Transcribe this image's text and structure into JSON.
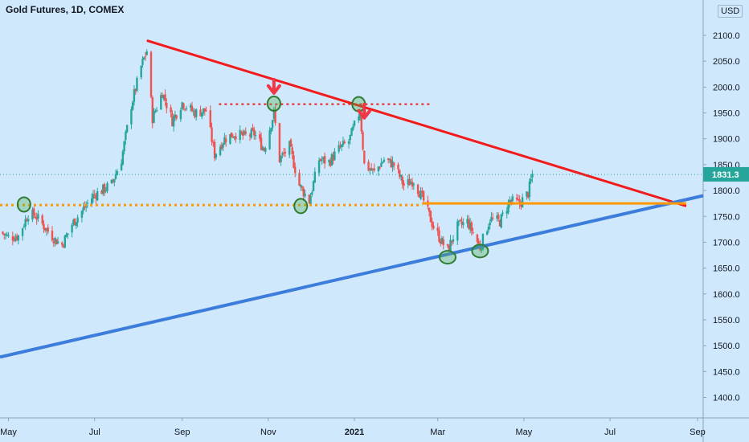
{
  "title": "Gold Futures, 1D, COMEX",
  "currency": "USD",
  "colors": {
    "background": "#cfe8fc",
    "up_candle": "#26a69a",
    "down_candle": "#ef5350",
    "resistance_line": "#f21a1a",
    "support_line": "#3c7ddc",
    "horizontal_level": "#ff9800",
    "marker_circle": "#4caf50",
    "arrow": "#f23645",
    "last_price_tag": "#26a69a"
  },
  "chart_data": {
    "type": "candlestick",
    "y_axis": {
      "ticks": [
        "1400.0",
        "1450.0",
        "1500.0",
        "1550.0",
        "1600.0",
        "1650.0",
        "1700.0",
        "1750.0",
        "1800.0",
        "1850.0",
        "1900.0",
        "1950.0",
        "2000.0",
        "2050.0",
        "2100.0"
      ],
      "ylim": [
        1370,
        2150
      ]
    },
    "x_axis": {
      "ticks": [
        "May",
        "Jul",
        "Sep",
        "Nov",
        "2021",
        "Mar",
        "May",
        "Jul",
        "Sep"
      ],
      "range": [
        "2020-04-25",
        "2021-09-05"
      ]
    },
    "last_price": "1831.3",
    "series": [
      {
        "type": "ohlc-approx",
        "points": [
          [
            "2020-04-25",
            1720
          ],
          [
            "2020-05-01",
            1710
          ],
          [
            "2020-05-08",
            1712
          ],
          [
            "2020-05-15",
            1755
          ],
          [
            "2020-05-20",
            1752
          ],
          [
            "2020-05-27",
            1728
          ],
          [
            "2020-06-03",
            1705
          ],
          [
            "2020-06-08",
            1695
          ],
          [
            "2020-06-15",
            1735
          ],
          [
            "2020-06-22",
            1760
          ],
          [
            "2020-06-30",
            1790
          ],
          [
            "2020-07-06",
            1800
          ],
          [
            "2020-07-13",
            1812
          ],
          [
            "2020-07-20",
            1860
          ],
          [
            "2020-07-27",
            1965
          ],
          [
            "2020-08-03",
            2040
          ],
          [
            "2020-08-07",
            2070
          ],
          [
            "2020-08-11",
            1940
          ],
          [
            "2020-08-18",
            1990
          ],
          [
            "2020-08-25",
            1935
          ],
          [
            "2020-09-01",
            1970
          ],
          [
            "2020-09-10",
            1950
          ],
          [
            "2020-09-18",
            1955
          ],
          [
            "2020-09-24",
            1870
          ],
          [
            "2020-10-01",
            1900
          ],
          [
            "2020-10-08",
            1910
          ],
          [
            "2020-10-15",
            1905
          ],
          [
            "2020-10-22",
            1910
          ],
          [
            "2020-10-29",
            1880
          ],
          [
            "2020-11-05",
            1950
          ],
          [
            "2020-11-09",
            1860
          ],
          [
            "2020-11-16",
            1885
          ],
          [
            "2020-11-23",
            1810
          ],
          [
            "2020-11-30",
            1780
          ],
          [
            "2020-12-07",
            1860
          ],
          [
            "2020-12-14",
            1855
          ],
          [
            "2020-12-21",
            1880
          ],
          [
            "2020-12-28",
            1895
          ],
          [
            "2021-01-05",
            1955
          ],
          [
            "2021-01-08",
            1850
          ],
          [
            "2021-01-15",
            1835
          ],
          [
            "2021-01-22",
            1860
          ],
          [
            "2021-01-29",
            1850
          ],
          [
            "2021-02-05",
            1810
          ],
          [
            "2021-02-12",
            1820
          ],
          [
            "2021-02-19",
            1780
          ],
          [
            "2021-02-26",
            1730
          ],
          [
            "2021-03-04",
            1700
          ],
          [
            "2021-03-08",
            1685
          ],
          [
            "2021-03-15",
            1730
          ],
          [
            "2021-03-22",
            1740
          ],
          [
            "2021-03-31",
            1690
          ],
          [
            "2021-04-07",
            1745
          ],
          [
            "2021-04-14",
            1740
          ],
          [
            "2021-04-21",
            1780
          ],
          [
            "2021-04-28",
            1775
          ],
          [
            "2021-05-04",
            1795
          ],
          [
            "2021-05-07",
            1831
          ]
        ]
      }
    ],
    "lines": [
      {
        "name": "",
        "style": "solid",
        "color": "red",
        "from": [
          "2020-08-07",
          2090
        ],
        "to": [
          "2021-08-24",
          1770
        ]
      },
      {
        "name": "",
        "style": "solid",
        "color": "blue",
        "from": [
          "2020-04-25",
          1478
        ],
        "to": [
          "2021-09-05",
          1790
        ]
      },
      {
        "name": "",
        "style": "dotted",
        "color": "orange",
        "from": [
          "2020-04-25",
          1772
        ],
        "to": [
          "2021-02-18",
          1772
        ]
      },
      {
        "name": "",
        "style": "solid",
        "color": "orange",
        "from": [
          "2021-02-18",
          1775
        ],
        "to": [
          "2021-08-24",
          1775
        ]
      },
      {
        "name": "",
        "style": "dotted",
        "color": "red",
        "from": [
          "2020-09-27",
          1967
        ],
        "to": [
          "2021-02-25",
          1967
        ]
      },
      {
        "name": "",
        "style": "dotted",
        "color": "teal",
        "from": [
          "2020-04-25",
          1831
        ],
        "to": [
          "2021-09-05",
          1831
        ]
      }
    ],
    "circles": [
      [
        "2020-05-12",
        1773
      ],
      [
        "2020-11-05",
        1968
      ],
      [
        "2020-11-24",
        1770
      ],
      [
        "2021-01-04",
        1967
      ],
      [
        "2021-03-08",
        1671
      ],
      [
        "2021-03-31",
        1683
      ]
    ],
    "arrows": [
      [
        "2020-11-05",
        1993
      ],
      [
        "2021-01-08",
        1945
      ]
    ]
  }
}
